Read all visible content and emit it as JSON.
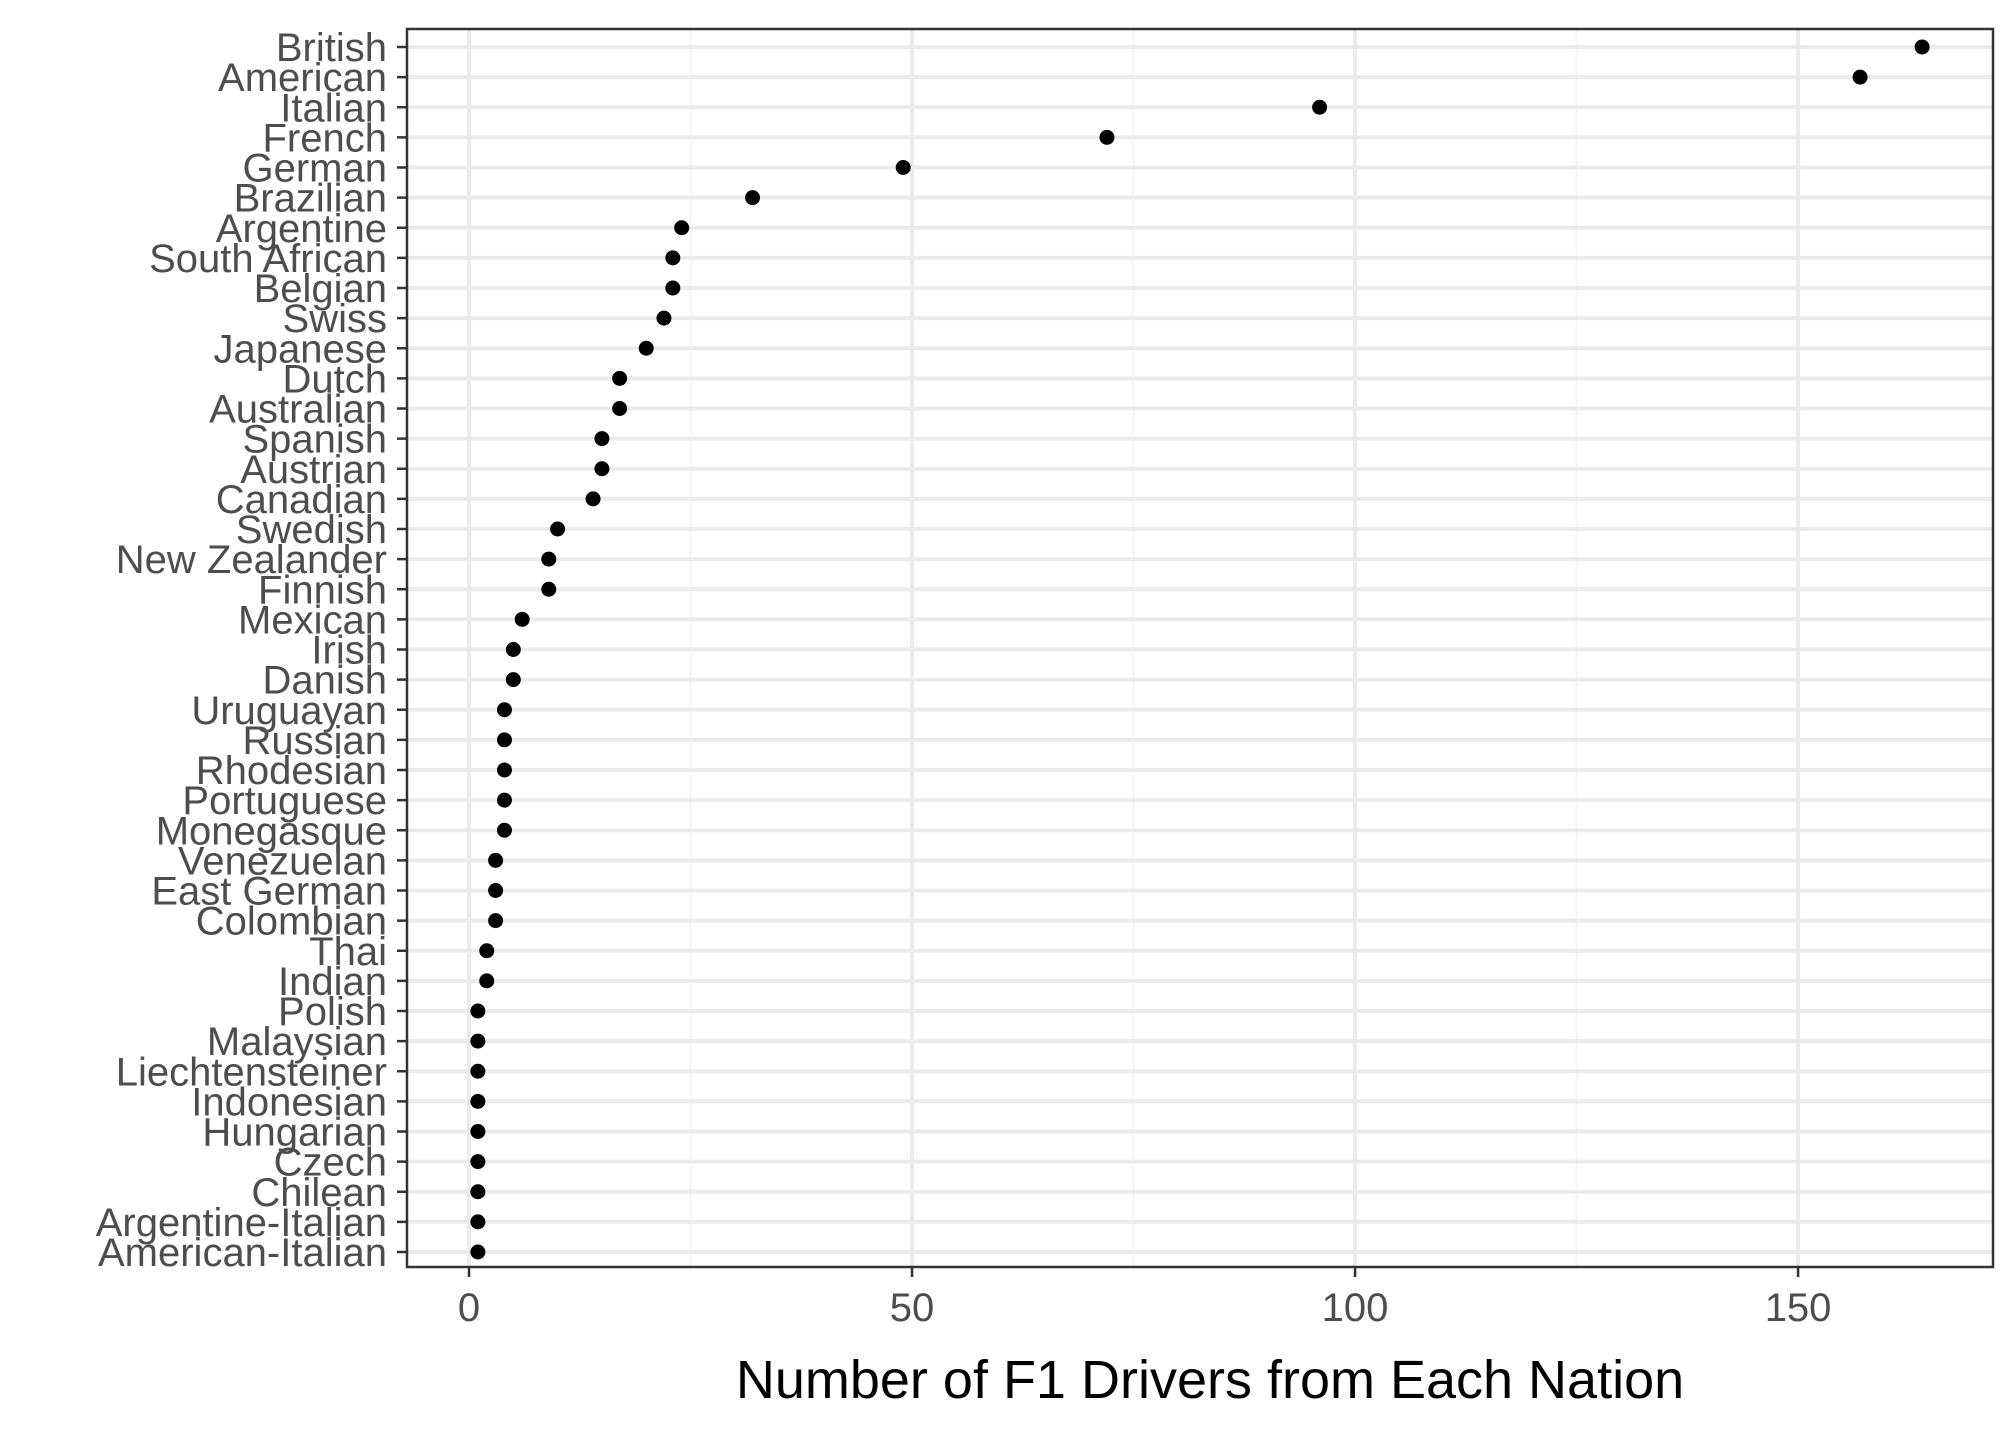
{
  "chart_data": {
    "type": "scatter",
    "title": "",
    "xlabel": "Number of F1 Drivers from Each Nation",
    "ylabel": "",
    "xlim": [
      -7,
      172
    ],
    "x_ticks": [
      0,
      50,
      100,
      150
    ],
    "x_tick_labels": [
      "0",
      "50",
      "100",
      "150"
    ],
    "grid": true,
    "legend": "none",
    "categories": [
      "British",
      "American",
      "Italian",
      "French",
      "German",
      "Brazilian",
      "Argentine",
      "South African",
      "Belgian",
      "Swiss",
      "Japanese",
      "Dutch",
      "Australian",
      "Spanish",
      "Austrian",
      "Canadian",
      "Swedish",
      "New Zealander",
      "Finnish",
      "Mexican",
      "Irish",
      "Danish",
      "Uruguayan",
      "Russian",
      "Rhodesian",
      "Portuguese",
      "Monegasque",
      "Venezuelan",
      "East German",
      "Colombian",
      "Thai",
      "Indian",
      "Polish",
      "Malaysian",
      "Liechtensteiner",
      "Indonesian",
      "Hungarian",
      "Czech",
      "Chilean",
      "Argentine-Italian",
      "American-Italian"
    ],
    "values": [
      164,
      157,
      96,
      72,
      49,
      32,
      24,
      23,
      23,
      22,
      20,
      17,
      17,
      15,
      15,
      14,
      10,
      9,
      9,
      6,
      5,
      5,
      4,
      4,
      4,
      4,
      4,
      3,
      3,
      3,
      2,
      2,
      1,
      1,
      1,
      1,
      1,
      1,
      1,
      1,
      1
    ]
  },
  "colors": {
    "background": "#ffffff",
    "panel_border": "#333333",
    "grid_major": "#ebebeb",
    "grid_minor": "#f5f5f5",
    "point": "#000000",
    "tick_text": "#4d4d4d",
    "axis_title": "#000000"
  }
}
